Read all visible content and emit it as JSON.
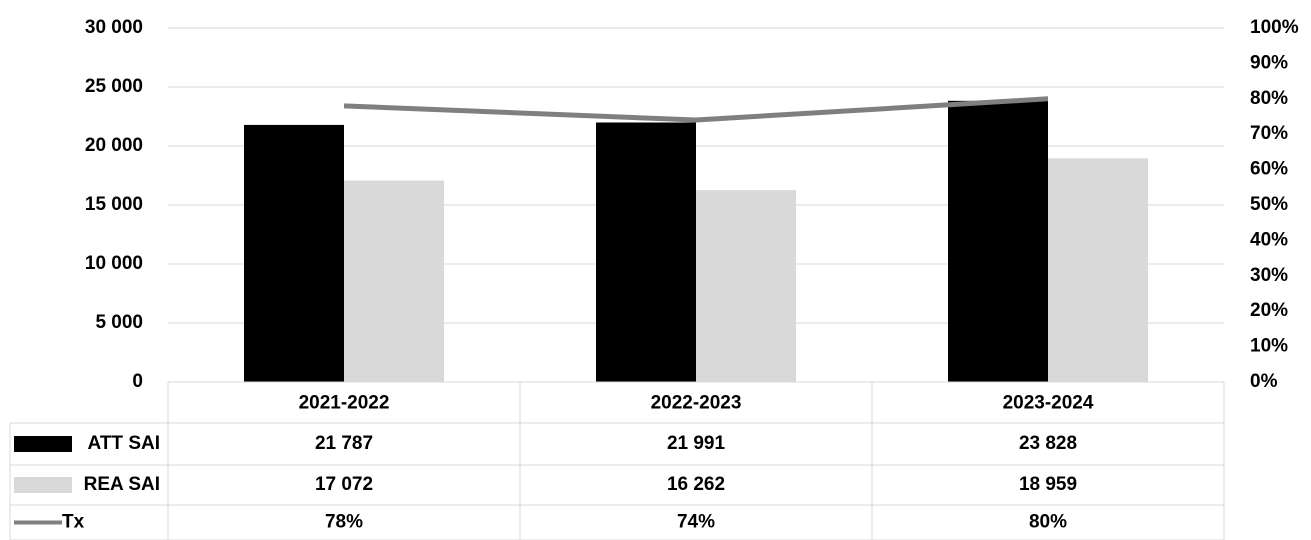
{
  "chart_data": {
    "type": "bar",
    "categories": [
      "2021-2022",
      "2022-2023",
      "2023-2024"
    ],
    "series": [
      {
        "name": "ATT SAI",
        "color": "#000000",
        "values": [
          21787,
          21991,
          23828
        ],
        "value_labels": [
          "21 787",
          "21 991",
          "23 828"
        ]
      },
      {
        "name": "REA SAI",
        "color": "#d9d9d9",
        "values": [
          17072,
          16262,
          18959
        ],
        "value_labels": [
          "17 072",
          "16 262",
          "18 959"
        ]
      },
      {
        "name": "Tx",
        "color": "#7f7f7f",
        "type": "line",
        "axis": "y2",
        "values": [
          78,
          74,
          80
        ],
        "value_labels": [
          "78%",
          "74%",
          "80%"
        ]
      }
    ],
    "ylim": [
      0,
      30000
    ],
    "yticks": [
      0,
      {
        "value": 5000,
        "label": "5 000"
      },
      {
        "value": 10000,
        "label": "10 000"
      },
      {
        "value": 15000,
        "label": "15 000"
      },
      {
        "value": 20000,
        "label": "20 000"
      },
      {
        "value": 25000,
        "label": "25 000"
      },
      {
        "value": 30000,
        "label": "30 000"
      }
    ],
    "y2lim": [
      0,
      100
    ],
    "y2ticks": [
      {
        "value": 0,
        "label": "0%"
      },
      {
        "value": 10,
        "label": "10%"
      },
      {
        "value": 20,
        "label": "20%"
      },
      {
        "value": 30,
        "label": "30%"
      },
      {
        "value": 40,
        "label": "40%"
      },
      {
        "value": 50,
        "label": "50%"
      },
      {
        "value": 60,
        "label": "60%"
      },
      {
        "value": 70,
        "label": "70%"
      },
      {
        "value": 80,
        "label": "80%"
      },
      {
        "value": 90,
        "label": "90%"
      },
      {
        "value": 100,
        "label": "100%"
      }
    ],
    "grid": true
  }
}
